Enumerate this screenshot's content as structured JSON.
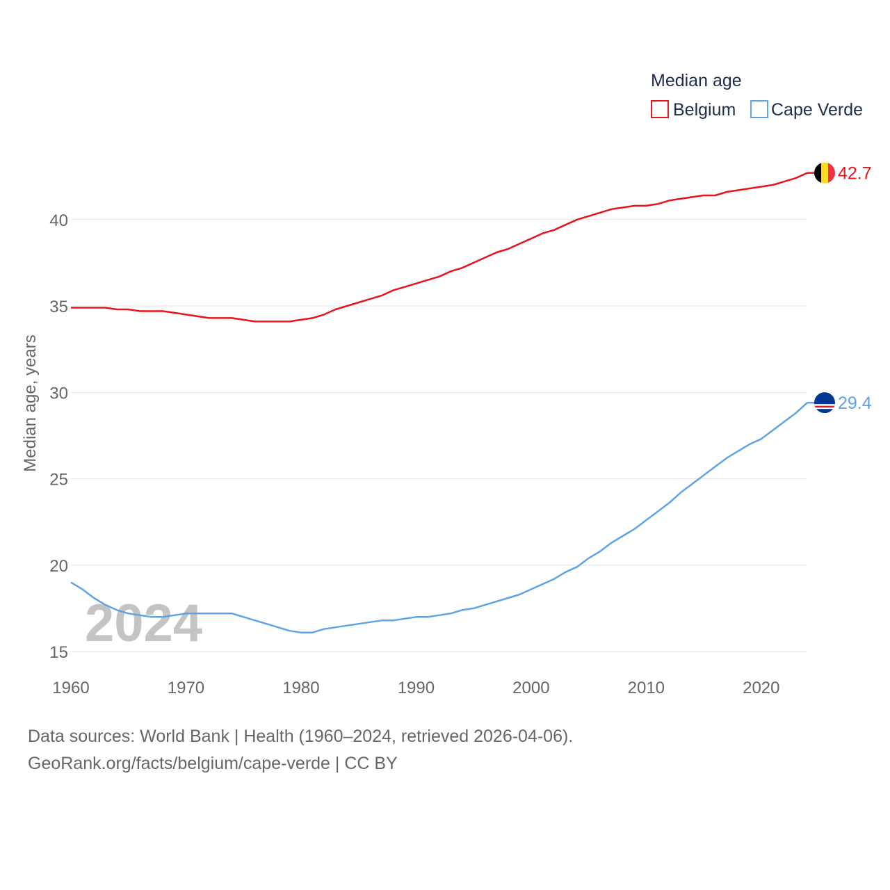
{
  "chart_data": {
    "type": "line",
    "legend_title": "Median age",
    "ylabel": "Median age, years",
    "xlim": [
      1960,
      2024
    ],
    "ylim": [
      15,
      45
    ],
    "yticks": [
      15,
      20,
      25,
      30,
      35,
      40
    ],
    "xticks": [
      1960,
      1970,
      1980,
      1990,
      2000,
      2010,
      2020
    ],
    "year_label": "2024",
    "x": [
      1960,
      1961,
      1962,
      1963,
      1964,
      1965,
      1966,
      1967,
      1968,
      1969,
      1970,
      1971,
      1972,
      1973,
      1974,
      1975,
      1976,
      1977,
      1978,
      1979,
      1980,
      1981,
      1982,
      1983,
      1984,
      1985,
      1986,
      1987,
      1988,
      1989,
      1990,
      1991,
      1992,
      1993,
      1994,
      1995,
      1996,
      1997,
      1998,
      1999,
      2000,
      2001,
      2002,
      2003,
      2004,
      2005,
      2006,
      2007,
      2008,
      2009,
      2010,
      2011,
      2012,
      2013,
      2014,
      2015,
      2016,
      2017,
      2018,
      2019,
      2020,
      2021,
      2022,
      2023,
      2024
    ],
    "series": [
      {
        "name": "Belgium",
        "color": "#e8141c",
        "flag": "belgium-flag",
        "end_label": "42.7",
        "values": [
          34.9,
          34.9,
          34.9,
          34.9,
          34.8,
          34.8,
          34.7,
          34.7,
          34.7,
          34.6,
          34.5,
          34.4,
          34.3,
          34.3,
          34.3,
          34.2,
          34.1,
          34.1,
          34.1,
          34.1,
          34.2,
          34.3,
          34.5,
          34.8,
          35.0,
          35.2,
          35.4,
          35.6,
          35.9,
          36.1,
          36.3,
          36.5,
          36.7,
          37.0,
          37.2,
          37.5,
          37.8,
          38.1,
          38.3,
          38.6,
          38.9,
          39.2,
          39.4,
          39.7,
          40.0,
          40.2,
          40.4,
          40.6,
          40.7,
          40.8,
          40.8,
          40.9,
          41.1,
          41.2,
          41.3,
          41.4,
          41.4,
          41.6,
          41.7,
          41.8,
          41.9,
          42.0,
          42.2,
          42.4,
          42.7
        ]
      },
      {
        "name": "Cape Verde",
        "color": "#5ea3e4",
        "flag": "cape-verde-flag",
        "end_label": "29.4",
        "values": [
          19.0,
          18.6,
          18.1,
          17.7,
          17.4,
          17.2,
          17.1,
          17.0,
          17.0,
          17.1,
          17.2,
          17.2,
          17.2,
          17.2,
          17.2,
          17.0,
          16.8,
          16.6,
          16.4,
          16.2,
          16.1,
          16.1,
          16.3,
          16.4,
          16.5,
          16.6,
          16.7,
          16.8,
          16.8,
          16.9,
          17.0,
          17.0,
          17.1,
          17.2,
          17.4,
          17.5,
          17.7,
          17.9,
          18.1,
          18.3,
          18.6,
          18.9,
          19.2,
          19.6,
          19.9,
          20.4,
          20.8,
          21.3,
          21.7,
          22.1,
          22.6,
          23.1,
          23.6,
          24.2,
          24.7,
          25.2,
          25.7,
          26.2,
          26.6,
          27.0,
          27.3,
          27.8,
          28.3,
          28.8,
          29.4
        ]
      }
    ]
  },
  "source_line1": "Data sources: World Bank | Health (1960–2024, retrieved 2026-04-06).",
  "source_line2": "GeoRank.org/facts/belgium/cape-verde | CC BY"
}
